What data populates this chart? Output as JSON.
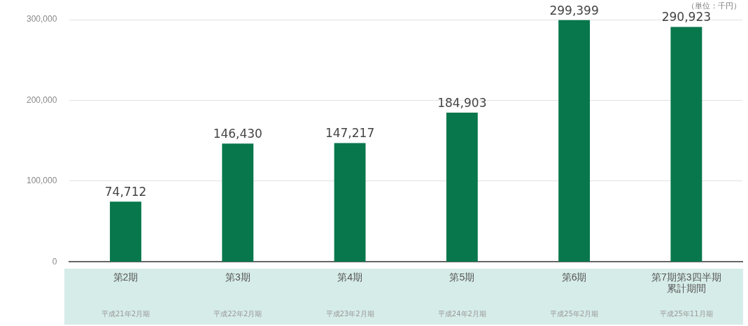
{
  "chart_data": {
    "type": "bar",
    "categories": [
      "第2期",
      "第3期",
      "第4期",
      "第5期",
      "第6期",
      "第7期第3四半期累計期間"
    ],
    "values": [
      74712,
      146430,
      147217,
      184903,
      299399,
      290923
    ],
    "value_labels": [
      "74,712",
      "146,430",
      "147,217",
      "184,903",
      "299,399",
      "290,923"
    ],
    "color": "#08774c",
    "ylim": [
      0,
      300000
    ],
    "yticks": [
      {
        "value": 0,
        "label": "0"
      },
      {
        "value": 100000,
        "label": "100,000"
      },
      {
        "value": 200000,
        "label": "200,000"
      },
      {
        "value": 300000,
        "label": "300,000"
      }
    ],
    "grid": "y",
    "legend": false,
    "annotations": [
      "（単位：千円）",
      "平成21年2月期",
      "平成22年2月期",
      "平成23年2月期",
      "平成24年2月期",
      "平成25年2月期",
      "平成25年11月期"
    ]
  }
}
